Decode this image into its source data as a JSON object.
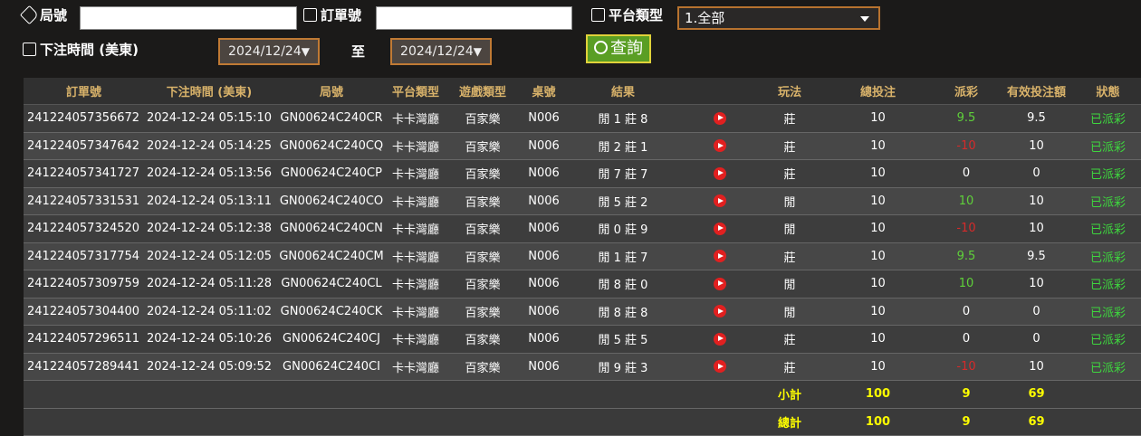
{
  "filters": {
    "round_label": "局號",
    "order_label": "訂單號",
    "platform_label": "平台類型",
    "platform_value": "1.全部",
    "time_label": "下注時間 (美東)",
    "date_from": "2024/12/24",
    "to_label": "至",
    "date_to": "2024/12/24",
    "query_button": "查詢"
  },
  "table": {
    "headers": [
      "訂單號",
      "下注時間 (美東)",
      "局號",
      "平台類型",
      "遊戲類型",
      "桌號",
      "結果",
      "玩法",
      "總投注",
      "派彩",
      "有效投注額",
      "狀態"
    ],
    "rows": [
      [
        "241224057356672",
        "2024-12-24 05:15:10",
        "GN00624C240CR",
        "卡卡灣廳",
        "百家樂",
        "N006",
        "閒 1 莊 8",
        "莊",
        10,
        9.5,
        9.5,
        "已派彩"
      ],
      [
        "241224057347642",
        "2024-12-24 05:14:25",
        "GN00624C240CQ",
        "卡卡灣廳",
        "百家樂",
        "N006",
        "閒 2 莊 1",
        "莊",
        10,
        -10,
        10,
        "已派彩"
      ],
      [
        "241224057341727",
        "2024-12-24 05:13:56",
        "GN00624C240CP",
        "卡卡灣廳",
        "百家樂",
        "N006",
        "閒 7 莊 7",
        "莊",
        10,
        0,
        0,
        "已派彩"
      ],
      [
        "241224057331531",
        "2024-12-24 05:13:11",
        "GN00624C240CO",
        "卡卡灣廳",
        "百家樂",
        "N006",
        "閒 5 莊 2",
        "閒",
        10,
        10,
        10,
        "已派彩"
      ],
      [
        "241224057324520",
        "2024-12-24 05:12:38",
        "GN00624C240CN",
        "卡卡灣廳",
        "百家樂",
        "N006",
        "閒 0 莊 9",
        "閒",
        10,
        -10,
        10,
        "已派彩"
      ],
      [
        "241224057317754",
        "2024-12-24 05:12:05",
        "GN00624C240CM",
        "卡卡灣廳",
        "百家樂",
        "N006",
        "閒 1 莊 7",
        "莊",
        10,
        9.5,
        9.5,
        "已派彩"
      ],
      [
        "241224057309759",
        "2024-12-24 05:11:28",
        "GN00624C240CL",
        "卡卡灣廳",
        "百家樂",
        "N006",
        "閒 8 莊 0",
        "閒",
        10,
        10,
        10,
        "已派彩"
      ],
      [
        "241224057304400",
        "2024-12-24 05:11:02",
        "GN00624C240CK",
        "卡卡灣廳",
        "百家樂",
        "N006",
        "閒 8 莊 8",
        "閒",
        10,
        0,
        0,
        "已派彩"
      ],
      [
        "241224057296511",
        "2024-12-24 05:10:26",
        "GN00624C240CJ",
        "卡卡灣廳",
        "百家樂",
        "N006",
        "閒 5 莊 5",
        "莊",
        10,
        0,
        0,
        "已派彩"
      ],
      [
        "241224057289441",
        "2024-12-24 05:09:52",
        "GN00624C240CI",
        "卡卡灣廳",
        "百家樂",
        "N006",
        "閒 9 莊 3",
        "莊",
        10,
        -10,
        10,
        "已派彩"
      ]
    ],
    "summary": [
      {
        "label": "小計",
        "total_bet": 100,
        "payout": 9,
        "valid_bet": 69
      },
      {
        "label": "總計",
        "total_bet": 100,
        "payout": 9,
        "valid_bet": 69
      }
    ]
  }
}
